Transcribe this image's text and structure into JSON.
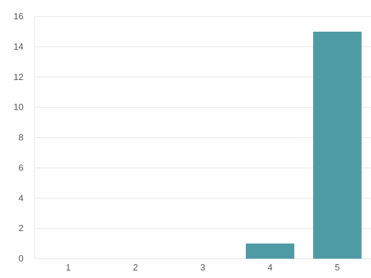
{
  "chart_data": {
    "type": "bar",
    "title": "",
    "xlabel": "",
    "ylabel": "",
    "categories": [
      "1",
      "2",
      "3",
      "4",
      "5"
    ],
    "values": [
      0,
      0,
      0,
      1,
      15
    ],
    "ylim": [
      0,
      16
    ],
    "yticks": [
      0,
      2,
      4,
      6,
      8,
      10,
      12,
      14,
      16
    ],
    "grid": true,
    "legend": "none",
    "bar_color": "#4e9ba5",
    "grid_color": "#e6e6e6",
    "text_color": "#555555"
  }
}
